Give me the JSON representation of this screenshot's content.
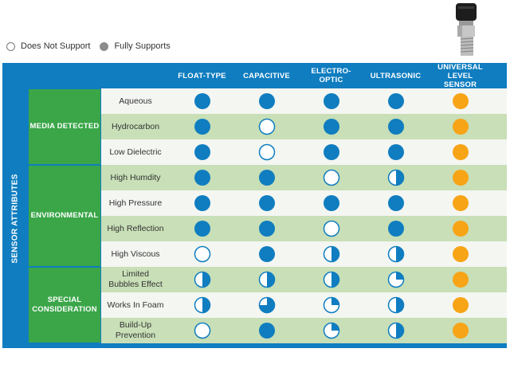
{
  "legend": [
    {
      "label": "Does Not Support",
      "icon": "empty-circle-icon"
    },
    {
      "label": "Fully Supports",
      "icon": "filled-circle-icon"
    }
  ],
  "side_label": "SENSOR ATTRIBUTES",
  "columns": [
    "FLOAT-TYPE",
    "CAPACITIVE",
    "ELECTRO-\nOPTIC",
    "ULTRASONIC",
    "UNIVERSAL LEVEL\nSENSOR"
  ],
  "groups": [
    {
      "label": "MEDIA DETECTED",
      "rows": [
        0,
        2
      ]
    },
    {
      "label": "ENVIRONMENTAL",
      "rows": [
        3,
        6
      ]
    },
    {
      "label": "SPECIAL\nCONSIDERATION",
      "rows": [
        7,
        9
      ]
    }
  ],
  "rows": [
    {
      "label": "Aqueous",
      "support": [
        1,
        1,
        1,
        1,
        1
      ]
    },
    {
      "label": "Hydrocarbon",
      "support": [
        1,
        0,
        1,
        1,
        1
      ]
    },
    {
      "label": "Low Dielectric",
      "support": [
        1,
        0,
        1,
        1,
        1
      ]
    },
    {
      "label": "High Humdity",
      "support": [
        1,
        1,
        0,
        0.5,
        1
      ]
    },
    {
      "label": "High Pressure",
      "support": [
        1,
        1,
        1,
        1,
        1
      ]
    },
    {
      "label": "High Reflection",
      "support": [
        1,
        1,
        0,
        1,
        1
      ]
    },
    {
      "label": "High Viscous",
      "support": [
        0,
        1,
        0.5,
        0.5,
        1
      ]
    },
    {
      "label": "Limited\nBubbles Effect",
      "support": [
        0.5,
        0.5,
        0.5,
        0.25,
        1
      ]
    },
    {
      "label": "Works In Foam",
      "support": [
        0.5,
        0.75,
        0.25,
        0.5,
        1
      ]
    },
    {
      "label": "Build-Up\nPrevention",
      "support": [
        0,
        1,
        0.25,
        0.5,
        1
      ]
    }
  ],
  "colors": {
    "frame": "#0f7dc0",
    "group": "#3aa648",
    "row_light": "#f4f6f2",
    "row_dark": "#c8dfb7",
    "dot_blue": "#0f7dc0",
    "dot_orange": "#f7a416"
  }
}
